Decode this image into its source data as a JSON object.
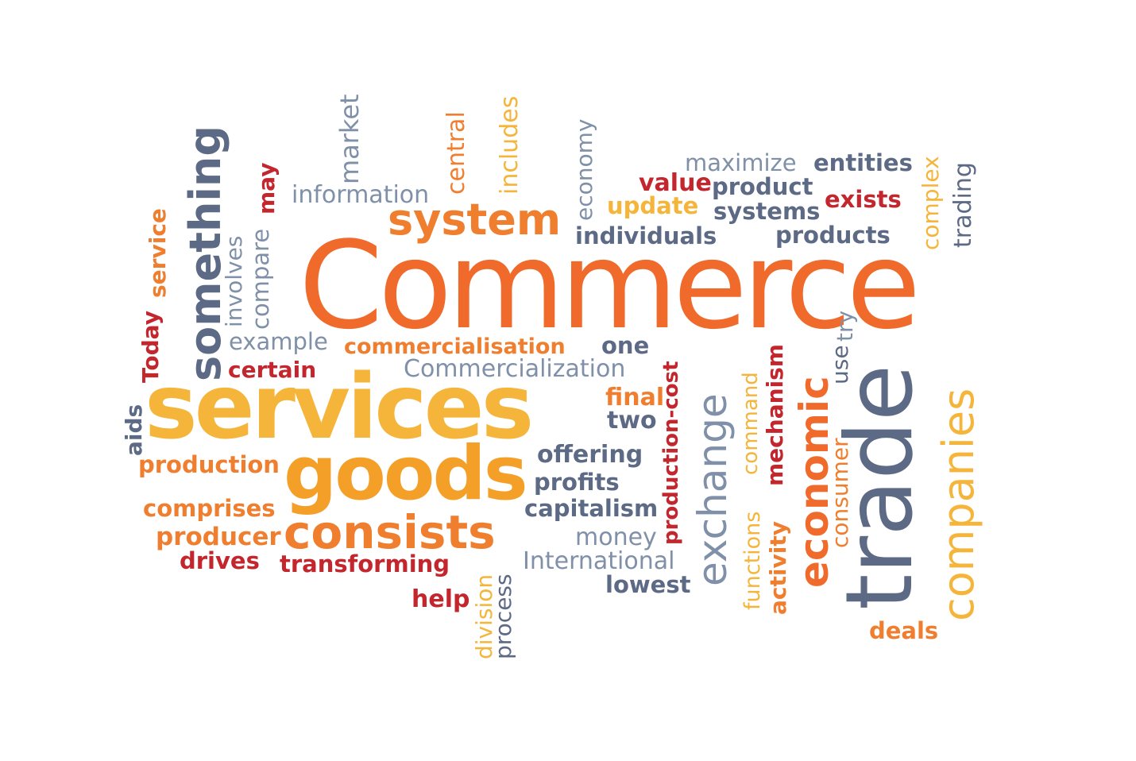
{
  "words": {
    "commerce": "Commerce",
    "services": "services",
    "goods": "goods",
    "trade": "trade",
    "companies": "companies",
    "something": "something",
    "system": "system",
    "economic": "economic",
    "exchange": "exchange",
    "consists": "consists",
    "information": "information",
    "market": "market",
    "central": "central",
    "includes": "includes",
    "economy": "economy",
    "maximize": "maximize",
    "entities": "entities",
    "value": "value",
    "product": "product",
    "exists": "exists",
    "update": "update",
    "systems": "systems",
    "complex": "complex",
    "trading": "trading",
    "individuals": "individuals",
    "products": "products",
    "may": "may",
    "compare": "compare",
    "involves": "involves",
    "service": "service",
    "today": "Today",
    "example": "example",
    "commercialisation": "commercialisation",
    "one": "one",
    "certain": "certain",
    "commercialization": "Commercialization",
    "final": "final",
    "two": "two",
    "aids": "aids",
    "production_cost": "production-cost",
    "command": "command",
    "mechanism": "mechanism",
    "use": "use",
    "try": "try",
    "consumer": "consumer",
    "functions": "functions",
    "activity": "activity",
    "production": "production",
    "offering": "offering",
    "profits": "profits",
    "capitalism": "capitalism",
    "comprises": "comprises",
    "producer": "producer",
    "money": "money",
    "international": "International",
    "drives": "drives",
    "transforming": "transforming",
    "lowest": "lowest",
    "help": "help",
    "division": "division",
    "process": "process",
    "deals": "deals"
  }
}
